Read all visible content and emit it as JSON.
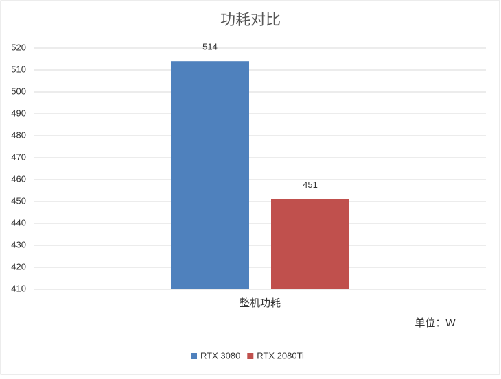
{
  "chart_data": {
    "type": "bar",
    "title": "功耗对比",
    "annotation": "单位：W",
    "categories": [
      "整机功耗"
    ],
    "series": [
      {
        "name": "RTX 3080",
        "color": "#4f81bd",
        "values": [
          514
        ]
      },
      {
        "name": "RTX 2080Ti",
        "color": "#c0504d",
        "values": [
          451
        ]
      }
    ],
    "ylim": [
      410,
      520
    ],
    "yticks": [
      410,
      420,
      430,
      440,
      450,
      460,
      470,
      480,
      490,
      500,
      510,
      520
    ],
    "grid": true,
    "legend": "bottom"
  }
}
